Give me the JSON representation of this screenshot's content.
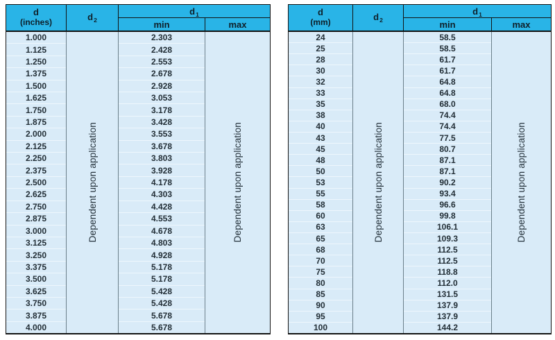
{
  "colors": {
    "header_bg": "#29b4e7",
    "row_bg": "#d9ebf8",
    "row_divider": "#eef7fd",
    "outer_border": "#121212",
    "inner_border": "#6b7f8a",
    "text": "#222e36",
    "header_text": "#0e1f29"
  },
  "tables": [
    {
      "id": "inches",
      "header": {
        "d_label": "d",
        "d_unit": "(inches)",
        "d2_base": "d",
        "d2_sub": "2",
        "d1_base": "d",
        "d1_sub": "1",
        "min_label": "min",
        "max_label": "max"
      },
      "d2_note": "Dependent upon application",
      "max_note": "Dependent upon application",
      "rows": [
        {
          "d": "1.000",
          "min": "2.303"
        },
        {
          "d": "1.125",
          "min": "2.428"
        },
        {
          "d": "1.250",
          "min": "2.553"
        },
        {
          "d": "1.375",
          "min": "2.678"
        },
        {
          "d": "1.500",
          "min": "2.928"
        },
        {
          "d": "1.625",
          "min": "3.053"
        },
        {
          "d": "1.750",
          "min": "3.178"
        },
        {
          "d": "1.875",
          "min": "3.428"
        },
        {
          "d": "2.000",
          "min": "3.553"
        },
        {
          "d": "2.125",
          "min": "3.678"
        },
        {
          "d": "2.250",
          "min": "3.803"
        },
        {
          "d": "2.375",
          "min": "3.928"
        },
        {
          "d": "2.500",
          "min": "4.178"
        },
        {
          "d": "2.625",
          "min": "4.303"
        },
        {
          "d": "2.750",
          "min": "4.428"
        },
        {
          "d": "2.875",
          "min": "4.553"
        },
        {
          "d": "3.000",
          "min": "4.678"
        },
        {
          "d": "3.125",
          "min": "4.803"
        },
        {
          "d": "3.250",
          "min": "4.928"
        },
        {
          "d": "3.375",
          "min": "5.178"
        },
        {
          "d": "3.500",
          "min": "5.178"
        },
        {
          "d": "3.625",
          "min": "5.428"
        },
        {
          "d": "3.750",
          "min": "5.428"
        },
        {
          "d": "3.875",
          "min": "5.678"
        },
        {
          "d": "4.000",
          "min": "5.678"
        }
      ]
    },
    {
      "id": "mm",
      "header": {
        "d_label": "d",
        "d_unit": "(mm)",
        "d2_base": "d",
        "d2_sub": "2",
        "d1_base": "d",
        "d1_sub": "1",
        "min_label": "min",
        "max_label": "max"
      },
      "d2_note": "Dependent upon application",
      "max_note": "Dependent upon application",
      "rows": [
        {
          "d": "24",
          "min": "58.5"
        },
        {
          "d": "25",
          "min": "58.5"
        },
        {
          "d": "28",
          "min": "61.7"
        },
        {
          "d": "30",
          "min": "61.7"
        },
        {
          "d": "32",
          "min": "64.8"
        },
        {
          "d": "33",
          "min": "64.8"
        },
        {
          "d": "35",
          "min": "68.0"
        },
        {
          "d": "38",
          "min": "74.4"
        },
        {
          "d": "40",
          "min": "74.4"
        },
        {
          "d": "43",
          "min": "77.5"
        },
        {
          "d": "45",
          "min": "80.7"
        },
        {
          "d": "48",
          "min": "87.1"
        },
        {
          "d": "50",
          "min": "87.1"
        },
        {
          "d": "53",
          "min": "90.2"
        },
        {
          "d": "55",
          "min": "93.4"
        },
        {
          "d": "58",
          "min": "96.6"
        },
        {
          "d": "60",
          "min": "99.8"
        },
        {
          "d": "63",
          "min": "106.1"
        },
        {
          "d": "65",
          "min": "109.3"
        },
        {
          "d": "68",
          "min": "112.5"
        },
        {
          "d": "70",
          "min": "112.5"
        },
        {
          "d": "75",
          "min": "118.8"
        },
        {
          "d": "80",
          "min": "112.0"
        },
        {
          "d": "85",
          "min": "131.5"
        },
        {
          "d": "90",
          "min": "137.9"
        },
        {
          "d": "95",
          "min": "137.9"
        },
        {
          "d": "100",
          "min": "144.2"
        }
      ]
    }
  ]
}
